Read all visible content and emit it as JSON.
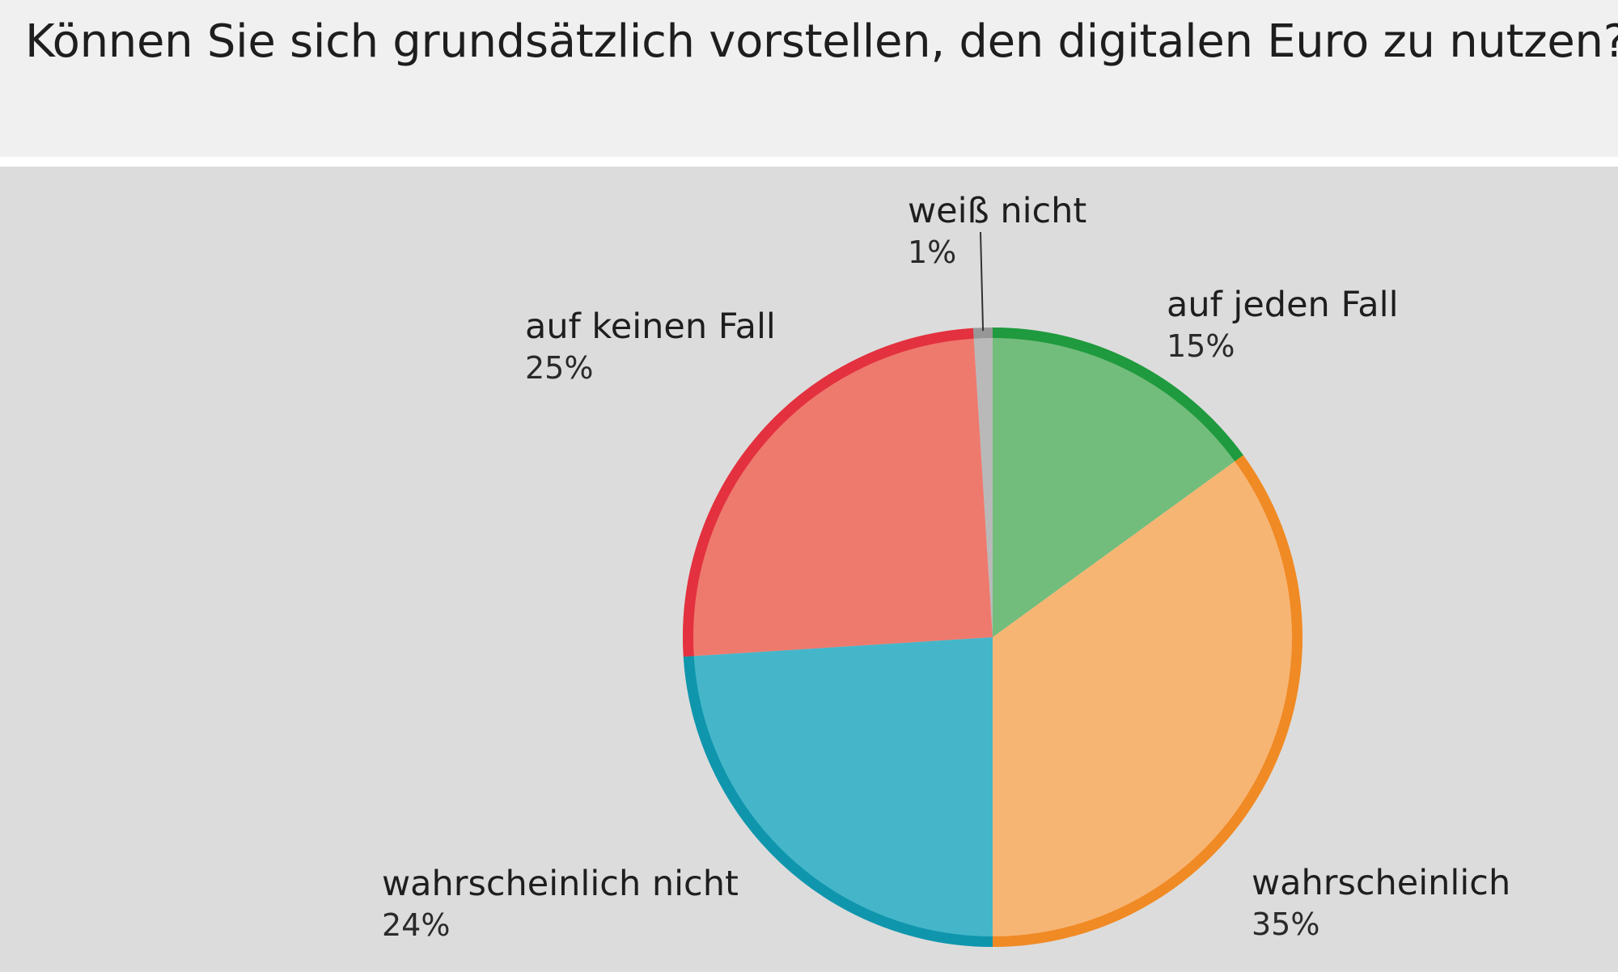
{
  "header": {
    "title": "Können Sie sich grundsätzlich vorstellen, den digitalen Euro zu nutzen?",
    "footnote_mark": "*)"
  },
  "chart_data": {
    "type": "pie",
    "start_angle_deg": 0,
    "direction": "clockwise",
    "slices": [
      {
        "label": "auf jeden Fall",
        "value": 15,
        "value_label": "15%",
        "fill": "#72bd7c",
        "edge": "#1f9a3e"
      },
      {
        "label": "wahrscheinlich",
        "value": 35,
        "value_label": "35%",
        "fill": "#f7b574",
        "edge": "#f08a24"
      },
      {
        "label": "wahrscheinlich nicht",
        "value": 24,
        "value_label": "24%",
        "fill": "#45b6c9",
        "edge": "#0f96ad"
      },
      {
        "label": "auf keinen Fall",
        "value": 25,
        "value_label": "25%",
        "fill": "#ee7a6e",
        "edge": "#e3313f"
      },
      {
        "label": "weiß nicht",
        "value": 1,
        "value_label": "1%",
        "fill": "#b9b9b9",
        "edge": "#979797"
      }
    ]
  }
}
